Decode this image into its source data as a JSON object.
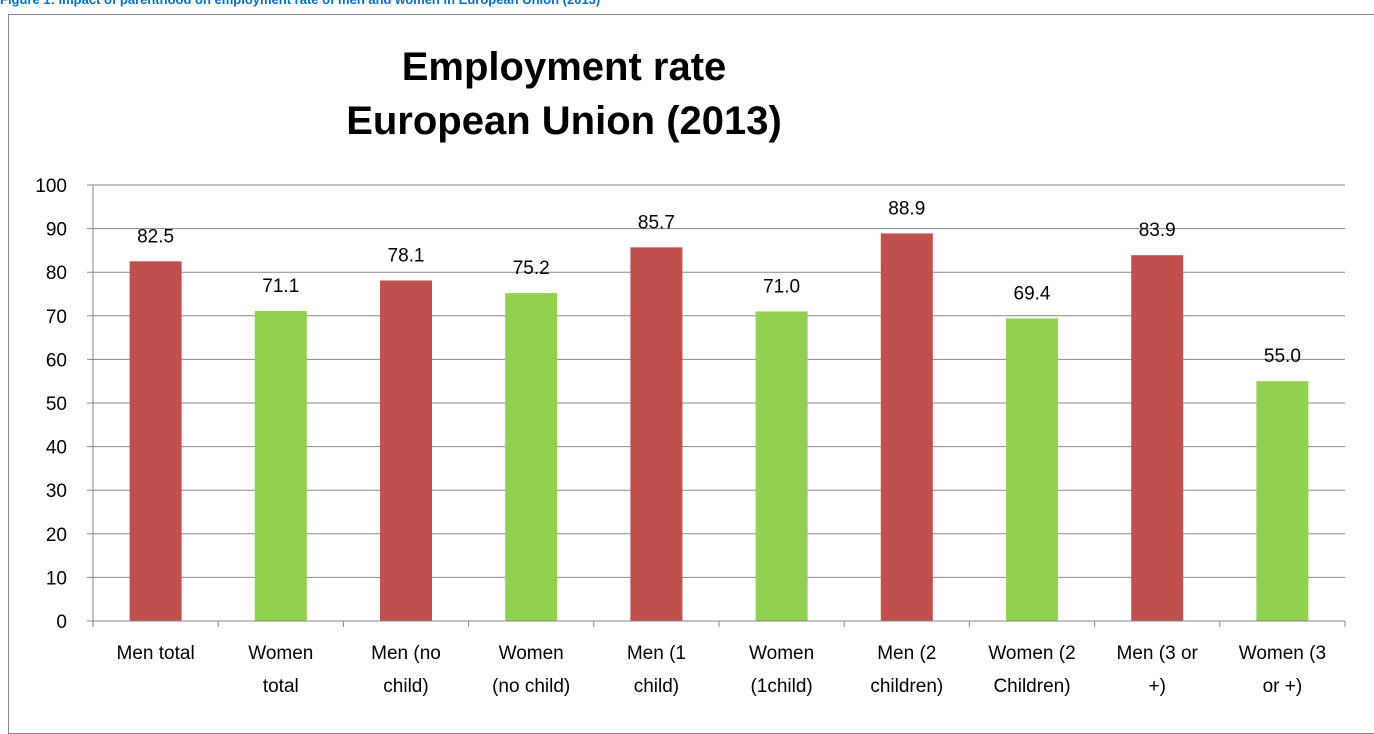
{
  "caption": "Figure 1: Impact of parenthood on employment rate of men and women in European Union (2013)",
  "colors": {
    "men": "#c0504d",
    "women": "#92d050",
    "caption": "#0070c0",
    "grid": "#868686"
  },
  "chart_data": {
    "type": "bar",
    "title": [
      "Employment rate",
      "European Union (2013)"
    ],
    "categories": [
      [
        "Men total"
      ],
      [
        "Women",
        "total"
      ],
      [
        "Men (no",
        "child)"
      ],
      [
        "Women",
        "(no child)"
      ],
      [
        "Men (1",
        "child)"
      ],
      [
        "Women",
        "(1child)"
      ],
      [
        "Men (2",
        "children)"
      ],
      [
        "Women (2",
        "Children)"
      ],
      [
        "Men (3 or",
        "+)"
      ],
      [
        "Women (3",
        "or +)"
      ]
    ],
    "values": [
      82.5,
      71.1,
      78.1,
      75.2,
      85.7,
      71.0,
      88.9,
      69.4,
      83.9,
      55.0
    ],
    "value_labels": [
      "82.5",
      "71.1",
      "78.1",
      "75.2",
      "85.7",
      "71.0",
      "88.9",
      "69.4",
      "83.9",
      "55.0"
    ],
    "bar_groups": [
      "men",
      "women",
      "men",
      "women",
      "men",
      "women",
      "men",
      "women",
      "men",
      "women"
    ],
    "yticks": [
      "0",
      "10",
      "20",
      "30",
      "40",
      "50",
      "60",
      "70",
      "80",
      "90",
      "100"
    ],
    "ylim": [
      0,
      100
    ],
    "xlabel": "",
    "ylabel": "",
    "grid": true,
    "legend": "none"
  }
}
